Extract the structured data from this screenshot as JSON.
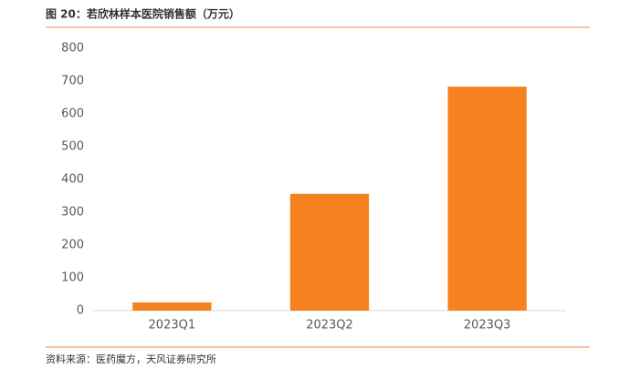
{
  "chart_data": {
    "type": "bar",
    "title": "图 20：若欣林样本医院销售额（万元）",
    "source": "资料来源：医药魔方，天风证券研究所",
    "categories": [
      "2023Q1",
      "2023Q2",
      "2023Q3"
    ],
    "values": [
      25,
      356,
      683
    ],
    "color": "#f5821f",
    "ylim": [
      0,
      800
    ],
    "yticks": [
      0,
      100,
      200,
      300,
      400,
      500,
      600,
      700,
      800
    ],
    "grid": false
  }
}
